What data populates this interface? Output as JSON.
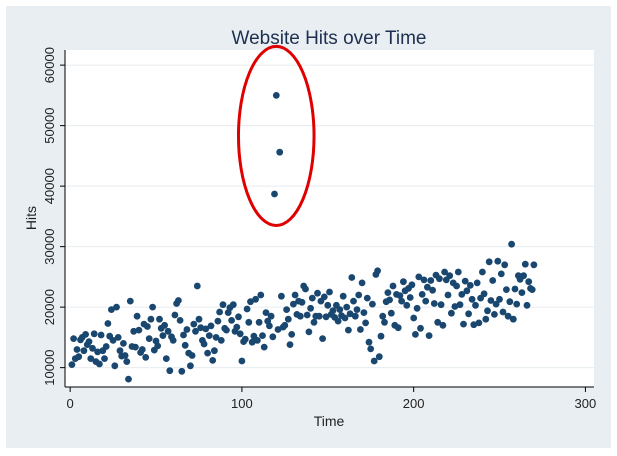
{
  "chart_data": {
    "type": "scatter",
    "title": "Website Hits over Time",
    "xlabel": "Time",
    "ylabel": "Hits",
    "xlim": [
      -3,
      305
    ],
    "ylim": [
      6800,
      62500
    ],
    "xticks": [
      0,
      100,
      200,
      300
    ],
    "yticks": [
      10000,
      20000,
      30000,
      40000,
      50000,
      60000
    ],
    "grid": "horizontal",
    "legend": "none",
    "colors": {
      "outer_background": "#e8eef2",
      "plot_background": "#ffffff",
      "gridline": "#e6ecef",
      "marker": "#1a476f",
      "annotation": "#e00000",
      "title": "#1e3050"
    },
    "annotation": {
      "shape": "ellipse",
      "center": [
        120,
        48300
      ],
      "radii": [
        22,
        14800
      ]
    },
    "series": [
      {
        "points": [
          [
            1,
            10500
          ],
          [
            2,
            14800
          ],
          [
            3,
            11500
          ],
          [
            4,
            13000
          ],
          [
            5,
            11800
          ],
          [
            6,
            14600
          ],
          [
            7,
            15000
          ],
          [
            8,
            12800
          ],
          [
            9,
            15500
          ],
          [
            10,
            13800
          ],
          [
            11,
            14300
          ],
          [
            12,
            11500
          ],
          [
            13,
            13200
          ],
          [
            14,
            15600
          ],
          [
            15,
            11000
          ],
          [
            16,
            12600
          ],
          [
            17,
            10600
          ],
          [
            18,
            15400
          ],
          [
            19,
            12800
          ],
          [
            20,
            11500
          ],
          [
            21,
            13500
          ],
          [
            22,
            17300
          ],
          [
            23,
            15200
          ],
          [
            24,
            19600
          ],
          [
            25,
            14500
          ],
          [
            26,
            10300
          ],
          [
            27,
            20000
          ],
          [
            28,
            15000
          ],
          [
            29,
            12800
          ],
          [
            30,
            11900
          ],
          [
            31,
            14000
          ],
          [
            32,
            12000
          ],
          [
            33,
            11000
          ],
          [
            34,
            8100
          ],
          [
            35,
            21000
          ],
          [
            36,
            13500
          ],
          [
            37,
            16000
          ],
          [
            38,
            13400
          ],
          [
            39,
            18500
          ],
          [
            40,
            16200
          ],
          [
            41,
            12500
          ],
          [
            42,
            13000
          ],
          [
            43,
            17200
          ],
          [
            44,
            11700
          ],
          [
            45,
            16800
          ],
          [
            46,
            14800
          ],
          [
            47,
            18000
          ],
          [
            48,
            20000
          ],
          [
            49,
            12900
          ],
          [
            50,
            14400
          ],
          [
            51,
            13600
          ],
          [
            52,
            18000
          ],
          [
            53,
            16500
          ],
          [
            54,
            15300
          ],
          [
            55,
            17000
          ],
          [
            56,
            11500
          ],
          [
            57,
            16000
          ],
          [
            58,
            9500
          ],
          [
            59,
            15100
          ],
          [
            60,
            14500
          ],
          [
            61,
            18700
          ],
          [
            62,
            20600
          ],
          [
            63,
            21100
          ],
          [
            64,
            17800
          ],
          [
            65,
            9400
          ],
          [
            66,
            15400
          ],
          [
            67,
            13700
          ],
          [
            68,
            16300
          ],
          [
            69,
            12400
          ],
          [
            70,
            10300
          ],
          [
            71,
            12000
          ],
          [
            72,
            17200
          ],
          [
            73,
            16000
          ],
          [
            74,
            23500
          ],
          [
            75,
            18000
          ],
          [
            76,
            16600
          ],
          [
            77,
            14500
          ],
          [
            78,
            13900
          ],
          [
            79,
            16400
          ],
          [
            80,
            12400
          ],
          [
            81,
            15300
          ],
          [
            82,
            16900
          ],
          [
            83,
            11200
          ],
          [
            84,
            12800
          ],
          [
            85,
            15000
          ],
          [
            86,
            17700
          ],
          [
            87,
            19200
          ],
          [
            88,
            14500
          ],
          [
            89,
            20400
          ],
          [
            90,
            16500
          ],
          [
            91,
            16200
          ],
          [
            92,
            19100
          ],
          [
            93,
            19900
          ],
          [
            94,
            17800
          ],
          [
            95,
            20400
          ],
          [
            96,
            16000
          ],
          [
            97,
            16700
          ],
          [
            98,
            18400
          ],
          [
            99,
            15600
          ],
          [
            100,
            11100
          ],
          [
            101,
            14300
          ],
          [
            102,
            14700
          ],
          [
            103,
            19700
          ],
          [
            104,
            17500
          ],
          [
            105,
            20900
          ],
          [
            106,
            14200
          ],
          [
            107,
            15200
          ],
          [
            108,
            21300
          ],
          [
            109,
            14500
          ],
          [
            110,
            17500
          ],
          [
            111,
            22000
          ],
          [
            112,
            15300
          ],
          [
            113,
            13400
          ],
          [
            114,
            19100
          ],
          [
            115,
            17700
          ],
          [
            116,
            16900
          ],
          [
            117,
            18500
          ],
          [
            118,
            15100
          ],
          [
            119,
            38700
          ],
          [
            120,
            55000
          ],
          [
            121,
            16300
          ],
          [
            122,
            45600
          ],
          [
            123,
            21800
          ],
          [
            124,
            16700
          ],
          [
            125,
            17000
          ],
          [
            126,
            19600
          ],
          [
            127,
            18000
          ],
          [
            128,
            13800
          ],
          [
            129,
            15500
          ],
          [
            130,
            20500
          ],
          [
            131,
            22000
          ],
          [
            132,
            18800
          ],
          [
            133,
            21000
          ],
          [
            134,
            18500
          ],
          [
            135,
            20800
          ],
          [
            136,
            23500
          ],
          [
            137,
            23000
          ],
          [
            138,
            18700
          ],
          [
            139,
            15900
          ],
          [
            140,
            19800
          ],
          [
            141,
            21500
          ],
          [
            142,
            17500
          ],
          [
            143,
            18500
          ],
          [
            144,
            22300
          ],
          [
            145,
            18500
          ],
          [
            146,
            21000
          ],
          [
            147,
            14800
          ],
          [
            148,
            21700
          ],
          [
            149,
            18400
          ],
          [
            150,
            20300
          ],
          [
            151,
            22500
          ],
          [
            152,
            18800
          ],
          [
            153,
            19400
          ],
          [
            154,
            18300
          ],
          [
            155,
            20300
          ],
          [
            156,
            17700
          ],
          [
            157,
            19600
          ],
          [
            158,
            18600
          ],
          [
            159,
            21800
          ],
          [
            160,
            18200
          ],
          [
            161,
            20000
          ],
          [
            162,
            16200
          ],
          [
            163,
            18900
          ],
          [
            164,
            24900
          ],
          [
            165,
            21000
          ],
          [
            166,
            18500
          ],
          [
            167,
            19600
          ],
          [
            168,
            22000
          ],
          [
            169,
            16300
          ],
          [
            170,
            24000
          ],
          [
            171,
            19100
          ],
          [
            172,
            17400
          ],
          [
            173,
            21500
          ],
          [
            174,
            14200
          ],
          [
            175,
            13100
          ],
          [
            176,
            20500
          ],
          [
            177,
            11100
          ],
          [
            178,
            25400
          ],
          [
            179,
            26000
          ],
          [
            180,
            11800
          ],
          [
            181,
            15200
          ],
          [
            182,
            18500
          ],
          [
            183,
            17500
          ],
          [
            184,
            20900
          ],
          [
            185,
            22400
          ],
          [
            186,
            21200
          ],
          [
            187,
            19000
          ],
          [
            188,
            23500
          ],
          [
            189,
            17000
          ],
          [
            190,
            22100
          ],
          [
            191,
            16600
          ],
          [
            192,
            21900
          ],
          [
            193,
            21000
          ],
          [
            194,
            24200
          ],
          [
            195,
            22700
          ],
          [
            196,
            20300
          ],
          [
            197,
            23100
          ],
          [
            198,
            21600
          ],
          [
            199,
            23700
          ],
          [
            200,
            18200
          ],
          [
            201,
            15500
          ],
          [
            202,
            19800
          ],
          [
            203,
            25000
          ],
          [
            204,
            16500
          ],
          [
            205,
            22100
          ],
          [
            206,
            24500
          ],
          [
            207,
            21000
          ],
          [
            208,
            23300
          ],
          [
            209,
            15300
          ],
          [
            210,
            24400
          ],
          [
            211,
            22800
          ],
          [
            212,
            20600
          ],
          [
            213,
            25300
          ],
          [
            214,
            17500
          ],
          [
            215,
            24700
          ],
          [
            216,
            20400
          ],
          [
            217,
            17000
          ],
          [
            218,
            25800
          ],
          [
            219,
            24500
          ],
          [
            220,
            22000
          ],
          [
            221,
            25200
          ],
          [
            222,
            19000
          ],
          [
            223,
            24000
          ],
          [
            224,
            20100
          ],
          [
            225,
            23500
          ],
          [
            226,
            25800
          ],
          [
            227,
            20400
          ],
          [
            228,
            22100
          ],
          [
            229,
            17200
          ],
          [
            230,
            24300
          ],
          [
            231,
            22700
          ],
          [
            232,
            18900
          ],
          [
            233,
            23600
          ],
          [
            234,
            21300
          ],
          [
            235,
            17100
          ],
          [
            236,
            20300
          ],
          [
            237,
            24000
          ],
          [
            238,
            17400
          ],
          [
            239,
            21500
          ],
          [
            240,
            25800
          ],
          [
            241,
            22200
          ],
          [
            242,
            18000
          ],
          [
            243,
            19400
          ],
          [
            244,
            27500
          ],
          [
            245,
            21100
          ],
          [
            246,
            24400
          ],
          [
            247,
            18800
          ],
          [
            248,
            20500
          ],
          [
            249,
            27600
          ],
          [
            250,
            21300
          ],
          [
            251,
            25500
          ],
          [
            252,
            19200
          ],
          [
            253,
            27000
          ],
          [
            254,
            22900
          ],
          [
            255,
            18500
          ],
          [
            256,
            20900
          ],
          [
            257,
            30400
          ],
          [
            258,
            18000
          ],
          [
            259,
            23000
          ],
          [
            260,
            20500
          ],
          [
            261,
            25200
          ],
          [
            262,
            24600
          ],
          [
            263,
            22400
          ],
          [
            264,
            25200
          ],
          [
            265,
            27100
          ],
          [
            266,
            20300
          ],
          [
            267,
            24200
          ],
          [
            268,
            23100
          ],
          [
            269,
            22900
          ],
          [
            270,
            27000
          ]
        ]
      }
    ]
  }
}
